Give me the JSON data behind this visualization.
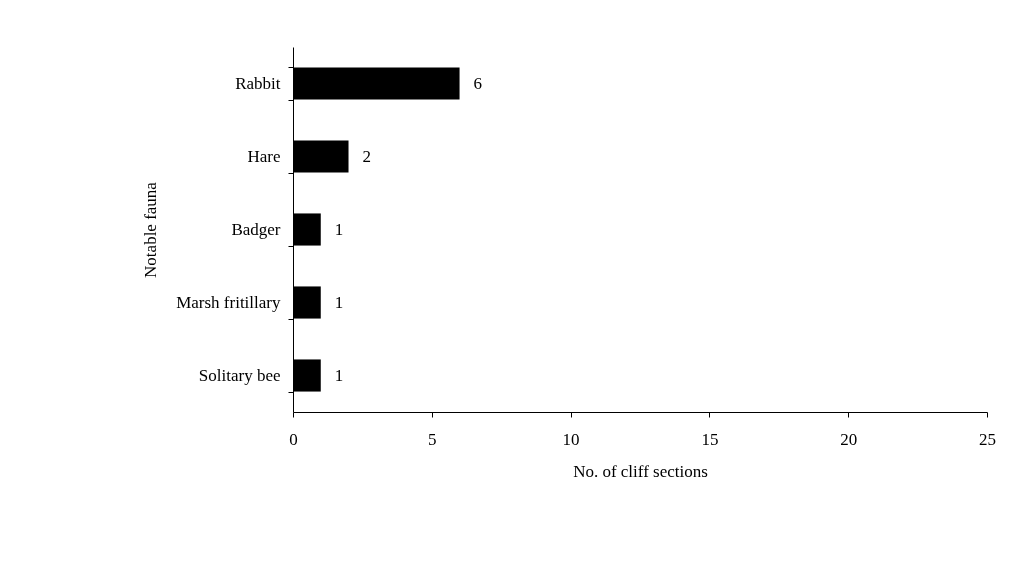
{
  "chart_data": {
    "type": "bar",
    "orientation": "horizontal",
    "xlabel": "No. of cliff sections",
    "ylabel": "Notable fauna",
    "categories": [
      "Rabbit",
      "Hare",
      "Badger",
      "Marsh fritillary",
      "Solitary bee"
    ],
    "values": [
      6,
      2,
      1,
      1,
      1
    ],
    "color": "#000000",
    "xlim": [
      0,
      25
    ],
    "xticks": [
      0,
      5,
      10,
      15,
      20,
      25
    ],
    "data_labels": true,
    "grid": false
  }
}
